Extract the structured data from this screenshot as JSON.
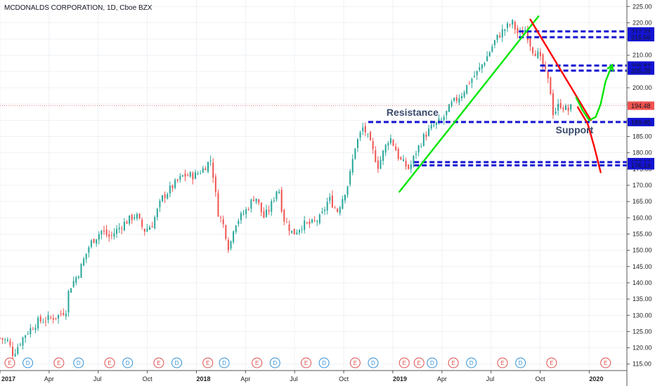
{
  "chart_data": {
    "type": "candlestick",
    "title": "MCDONALDS CORPORATION, 1D, Cboe BZX",
    "ylim": [
      113,
      227
    ],
    "y_ticks": [
      115,
      120,
      125,
      130,
      135,
      140,
      145,
      150,
      155,
      160,
      165,
      170,
      175,
      180,
      185,
      190,
      195,
      200,
      205,
      210,
      215,
      220,
      225
    ],
    "y_tick_labels": [
      "115.00",
      "120.00",
      "125.00",
      "130.00",
      "135.00",
      "140.00",
      "145.00",
      "150.00",
      "155.00",
      "160.00",
      "165.00",
      "170.00",
      "175.00",
      "180.00",
      "185.00",
      "190.00",
      "195.00",
      "200.00",
      "205.00",
      "210.00",
      "215.00",
      "220.00",
      "225.00"
    ],
    "x_range_months": [
      0,
      38.3
    ],
    "x_ticks": [
      {
        "label": "2017",
        "t": 0
      },
      {
        "label": "Apr",
        "t": 3
      },
      {
        "label": "Jul",
        "t": 6
      },
      {
        "label": "Oct",
        "t": 9
      },
      {
        "label": "2018",
        "t": 12
      },
      {
        "label": "Apr",
        "t": 15
      },
      {
        "label": "Jul",
        "t": 18
      },
      {
        "label": "Oct",
        "t": 21
      },
      {
        "label": "2019",
        "t": 24
      },
      {
        "label": "Apr",
        "t": 27
      },
      {
        "label": "Jul",
        "t": 30
      },
      {
        "label": "Oct",
        "t": 33
      },
      {
        "label": "2020",
        "t": 36
      },
      {
        "label": "Apr",
        "t": 39
      }
    ],
    "price_path": [
      [
        0.0,
        123
      ],
      [
        0.5,
        122
      ],
      [
        0.8,
        118
      ],
      [
        1.5,
        124
      ],
      [
        2.3,
        128
      ],
      [
        3.0,
        129
      ],
      [
        3.6,
        130
      ],
      [
        4.1,
        132
      ],
      [
        4.2,
        138
      ],
      [
        4.8,
        143
      ],
      [
        5.5,
        152
      ],
      [
        6.2,
        156
      ],
      [
        6.7,
        154
      ],
      [
        7.5,
        158
      ],
      [
        8.3,
        161
      ],
      [
        8.8,
        156
      ],
      [
        9.3,
        158
      ],
      [
        9.9,
        166
      ],
      [
        10.6,
        170
      ],
      [
        11.2,
        173
      ],
      [
        11.9,
        173
      ],
      [
        12.4,
        175
      ],
      [
        12.9,
        178
      ],
      [
        13.3,
        162
      ],
      [
        13.7,
        157
      ],
      [
        14.0,
        150
      ],
      [
        14.3,
        158
      ],
      [
        15.0,
        162
      ],
      [
        15.6,
        167
      ],
      [
        16.1,
        160
      ],
      [
        16.5,
        163
      ],
      [
        17.0,
        170
      ],
      [
        17.3,
        160
      ],
      [
        17.9,
        155
      ],
      [
        18.5,
        158
      ],
      [
        19.0,
        158
      ],
      [
        19.6,
        160
      ],
      [
        20.1,
        166
      ],
      [
        20.6,
        162
      ],
      [
        21.3,
        171
      ],
      [
        21.7,
        182
      ],
      [
        22.2,
        188
      ],
      [
        22.6,
        183
      ],
      [
        23.1,
        176
      ],
      [
        23.4,
        180
      ],
      [
        23.8,
        185
      ],
      [
        24.1,
        182
      ],
      [
        24.4,
        178
      ],
      [
        25.0,
        175
      ],
      [
        25.4,
        180
      ],
      [
        25.9,
        185
      ],
      [
        26.4,
        188
      ],
      [
        27.0,
        190
      ],
      [
        27.6,
        195
      ],
      [
        28.2,
        198
      ],
      [
        28.7,
        202
      ],
      [
        29.2,
        205
      ],
      [
        29.8,
        210
      ],
      [
        30.3,
        215
      ],
      [
        30.8,
        218
      ],
      [
        31.3,
        220
      ],
      [
        31.7,
        216
      ],
      [
        32.1,
        218
      ],
      [
        32.5,
        212
      ],
      [
        32.9,
        210
      ],
      [
        33.3,
        205
      ],
      [
        33.6,
        200
      ],
      [
        33.8,
        192
      ],
      [
        34.2,
        195
      ],
      [
        34.7,
        193
      ],
      [
        35.0,
        194.48
      ]
    ],
    "last_price": {
      "value": 194.48,
      "label": "194.48"
    },
    "price_levels": [
      {
        "value": 217.33,
        "label": "217.33",
        "t_start": 31.7
      },
      {
        "value": 215.56,
        "label": "215.56",
        "t_start": 31.7
      },
      {
        "value": 206.83,
        "label": "206.83",
        "t_start": 33.0
      },
      {
        "value": 205.28,
        "label": "205.28",
        "t_start": 33.0
      },
      {
        "value": 189.45,
        "label": "189.45",
        "t_start": 22.5
      },
      {
        "value": 177.12,
        "label": "177.12",
        "t_start": 25.3
      },
      {
        "value": 176.13,
        "label": "176.13",
        "t_start": 25.3
      }
    ],
    "trendlines": [
      {
        "color": "#00e600",
        "points": [
          [
            24.4,
            168
          ],
          [
            32.9,
            222
          ]
        ]
      },
      {
        "color": "#ff0000",
        "points": [
          [
            32.4,
            221
          ],
          [
            36.1,
            190
          ]
        ]
      },
      {
        "color": "#ff0000",
        "points": [
          [
            35.3,
            194
          ],
          [
            35.9,
            189
          ],
          [
            36.3,
            182
          ],
          [
            36.7,
            174
          ]
        ]
      },
      {
        "color": "#00e600",
        "points": [
          [
            35.2,
            197
          ],
          [
            35.6,
            193
          ],
          [
            36.0,
            190
          ],
          [
            36.4,
            191
          ],
          [
            36.7,
            195
          ],
          [
            37.0,
            202
          ],
          [
            37.4,
            207
          ]
        ]
      }
    ],
    "annotations": [
      {
        "text": "Resistance",
        "t": 25.2,
        "y": 191.4
      },
      {
        "text": "Support",
        "t": 35.1,
        "y": 186.0
      }
    ],
    "events": [
      {
        "label": "E",
        "t": 0.6,
        "color": "#e04b4b"
      },
      {
        "label": "D",
        "t": 1.7,
        "color": "#2d8fd6"
      },
      {
        "label": "E",
        "t": 3.6,
        "color": "#e04b4b"
      },
      {
        "label": "D",
        "t": 4.8,
        "color": "#2d8fd6"
      },
      {
        "label": "E",
        "t": 6.7,
        "color": "#e04b4b"
      },
      {
        "label": "D",
        "t": 7.8,
        "color": "#2d8fd6"
      },
      {
        "label": "E",
        "t": 9.7,
        "color": "#e04b4b"
      },
      {
        "label": "D",
        "t": 10.8,
        "color": "#2d8fd6"
      },
      {
        "label": "E",
        "t": 12.7,
        "color": "#e04b4b"
      },
      {
        "label": "D",
        "t": 13.7,
        "color": "#2d8fd6"
      },
      {
        "label": "E",
        "t": 15.7,
        "color": "#e04b4b"
      },
      {
        "label": "D",
        "t": 16.8,
        "color": "#2d8fd6"
      },
      {
        "label": "E",
        "t": 18.7,
        "color": "#e04b4b"
      },
      {
        "label": "D",
        "t": 19.8,
        "color": "#2d8fd6"
      },
      {
        "label": "E",
        "t": 21.7,
        "color": "#e04b4b"
      },
      {
        "label": "D",
        "t": 22.8,
        "color": "#2d8fd6"
      },
      {
        "label": "E",
        "t": 24.7,
        "color": "#e04b4b"
      },
      {
        "label": "E",
        "t": 25.6,
        "color": "#e04b4b"
      },
      {
        "label": "D",
        "t": 26.4,
        "color": "#2d8fd6"
      },
      {
        "label": "E",
        "t": 27.7,
        "color": "#e04b4b"
      },
      {
        "label": "D",
        "t": 28.8,
        "color": "#2d8fd6"
      },
      {
        "label": "E",
        "t": 30.7,
        "color": "#e04b4b"
      },
      {
        "label": "D",
        "t": 31.8,
        "color": "#2d8fd6"
      },
      {
        "label": "E",
        "t": 33.7,
        "color": "#e04b4b"
      },
      {
        "label": "E",
        "t": 37.0,
        "color": "#e04b4b"
      }
    ],
    "colors": {
      "up": "#26a69a",
      "down": "#ef5350",
      "level_line": "#1414d2",
      "level_badge": "#1414d2",
      "last_price_line": "#ef5350",
      "last_price_badge": "#ef5350",
      "grid": "#eef1f5",
      "axis": "#555555"
    },
    "grid": true
  }
}
